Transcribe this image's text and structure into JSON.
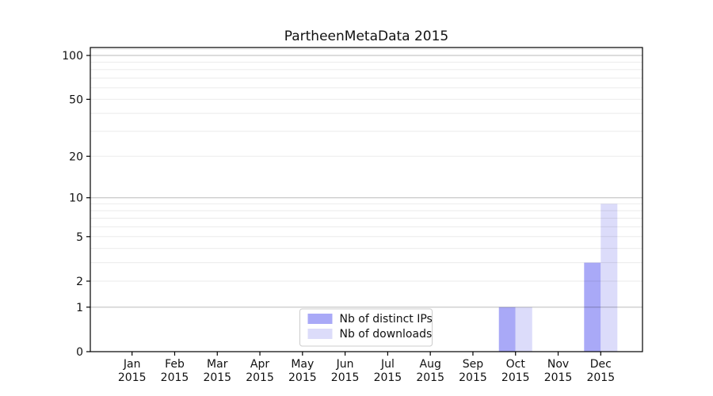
{
  "chart_data": {
    "type": "bar",
    "title": "PartheenMetaData 2015",
    "categories": [
      "Jan",
      "Feb",
      "Mar",
      "Apr",
      "May",
      "Jun",
      "Jul",
      "Aug",
      "Sep",
      "Oct",
      "Nov",
      "Dec"
    ],
    "year_label": "2015",
    "series": [
      {
        "name": "Nb of distinct IPs",
        "color": "#a9a9f7",
        "values": [
          0,
          0,
          0,
          0,
          0,
          0,
          0,
          0,
          0,
          1,
          0,
          3
        ]
      },
      {
        "name": "Nb of downloads",
        "color": "#dcdcfa",
        "values": [
          0,
          0,
          0,
          0,
          0,
          0,
          0,
          0,
          0,
          1,
          0,
          9
        ]
      }
    ],
    "yscale": "log10(1+x)",
    "ylim": [
      0,
      113.3
    ],
    "yticks": [
      0,
      1,
      2,
      5,
      10,
      20,
      50,
      100
    ],
    "grid": {
      "major": [
        1,
        10,
        100
      ],
      "minor": [
        2,
        3,
        4,
        5,
        6,
        7,
        8,
        9,
        20,
        30,
        40,
        50,
        60,
        70,
        80,
        90,
        110
      ]
    },
    "legend": {
      "position": "lower center",
      "entries": [
        "Nb of distinct IPs",
        "Nb of downloads"
      ]
    },
    "colors": {
      "axis": "#000000",
      "major_grid": "rgba(0,0,0,0.27)",
      "minor_grid": "rgba(0,0,0,0.08)",
      "text": "#111111",
      "legend_border": "#cccccc"
    }
  }
}
